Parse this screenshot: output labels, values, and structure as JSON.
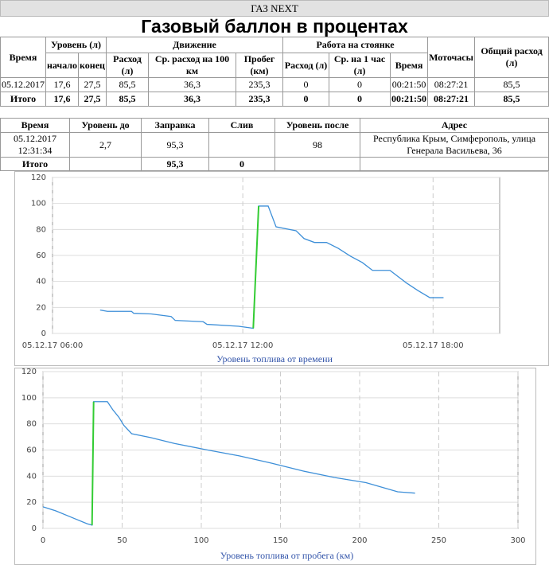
{
  "header": {
    "brand": "ГАЗ NEXT",
    "title": "Газовый баллон в процентах"
  },
  "summary_table": {
    "groups": [
      "Время",
      "Уровень (л)",
      "Движение",
      "Работа на стоянке",
      "Моточасы",
      "Общий расход (л)"
    ],
    "columns": [
      "начало",
      "конец",
      "Расход (л)",
      "Ср. расход на 100 км",
      "Пробег (км)",
      "Расход (л)",
      "Ср. на 1 час (л)",
      "Время"
    ],
    "rows": [
      [
        "05.12.2017",
        "17,6",
        "27,5",
        "85,5",
        "36,3",
        "235,3",
        "0",
        "0",
        "00:21:50",
        "08:27:21",
        "85,5"
      ],
      [
        "Итого",
        "17,6",
        "27,5",
        "85,5",
        "36,3",
        "235,3",
        "0",
        "0",
        "00:21:50",
        "08:27:21",
        "85,5"
      ]
    ]
  },
  "refuel_table": {
    "columns": [
      "Время",
      "Уровень до",
      "Заправка",
      "Слив",
      "Уровень после",
      "Адрес"
    ],
    "rows": [
      [
        "05.12.2017 12:31:34",
        "2,7",
        "95,3",
        null,
        "98",
        "Республика Крым, Симферополь, улица Генерала Васильева, 36"
      ],
      [
        "Итого",
        null,
        "95,3",
        "0",
        null,
        null
      ]
    ]
  },
  "chart_data": [
    {
      "type": "line",
      "xlabel": "Уровень топлива от времени",
      "x": [
        7.5,
        7.73,
        8.49,
        8.56,
        9.11,
        9.74,
        9.87,
        10.75,
        10.87,
        11.87,
        12.33,
        12.5,
        12.8,
        13.05,
        13.68,
        13.93,
        14.26,
        14.64,
        15.01,
        15.39,
        15.77,
        16.09,
        16.64,
        17.15,
        17.52,
        17.9,
        18.33
      ],
      "series": [
        {
          "color": "#3d8fd8",
          "values": [
            18,
            17,
            17,
            15.5,
            15,
            13,
            10,
            9,
            7,
            5.5,
            4,
            98,
            98,
            82,
            79,
            73,
            70,
            70,
            65.5,
            59.5,
            54.5,
            48.5,
            48.5,
            39,
            33,
            27.5,
            27.5
          ]
        },
        {
          "color": "#33cc33",
          "values": [
            null,
            null,
            null,
            null,
            null,
            null,
            null,
            null,
            null,
            null,
            4,
            98,
            null,
            null,
            null,
            null,
            null,
            null,
            null,
            null,
            null,
            null,
            null,
            null,
            null,
            null,
            null
          ]
        }
      ],
      "xlim": [
        6,
        20.1
      ],
      "ylim": [
        0,
        120
      ],
      "xticks": [
        {
          "value": 6,
          "label": "05.12.17 06:00"
        },
        {
          "value": 12,
          "label": "05.12.17 12:00"
        },
        {
          "value": 18,
          "label": "05.12.17 18:00"
        }
      ],
      "yticks": [
        0,
        20,
        40,
        60,
        80,
        100,
        120
      ],
      "grid": true
    },
    {
      "type": "line",
      "xlabel": "Уровень топлива от пробега (км)",
      "x": [
        0,
        8,
        18,
        28,
        31,
        32,
        40.7,
        44,
        48,
        51,
        56,
        68,
        83,
        104,
        124,
        144,
        164,
        184,
        204,
        224,
        235
      ],
      "series": [
        {
          "color": "#3d8fd8",
          "values": [
            16.5,
            13.5,
            8.5,
            3.5,
            2.5,
            97,
            97,
            91,
            85,
            79,
            72.5,
            69.5,
            65,
            60,
            55.5,
            50,
            44,
            39,
            35,
            28,
            27
          ]
        },
        {
          "color": "#33cc33",
          "values": [
            null,
            null,
            null,
            null,
            2.5,
            97,
            null,
            null,
            null,
            null,
            null,
            null,
            null,
            null,
            null,
            null,
            null,
            null,
            null,
            null,
            null
          ]
        }
      ],
      "xlim": [
        0,
        300
      ],
      "ylim": [
        0,
        120
      ],
      "xticks": [
        0,
        50,
        100,
        150,
        200,
        250,
        300
      ],
      "yticks": [
        0,
        20,
        40,
        60,
        80,
        100,
        120
      ],
      "grid": true
    }
  ]
}
